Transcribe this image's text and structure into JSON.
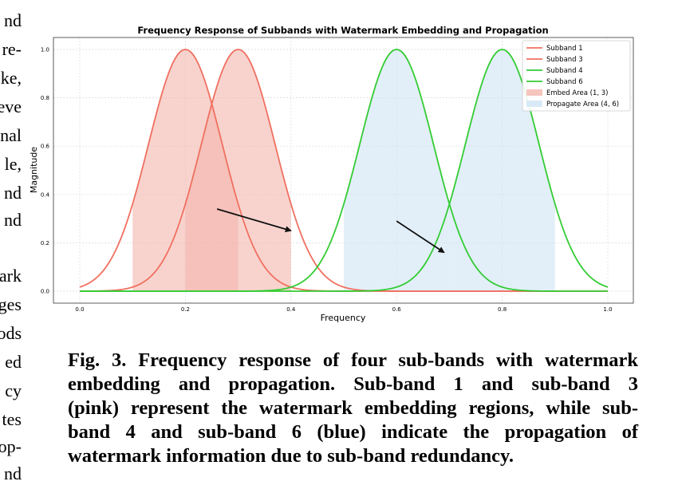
{
  "left_column_fragments": [
    "nd",
    "re-",
    "ke,",
    "eve",
    "nal",
    "le,",
    "nd",
    "nd",
    "ark",
    "ges",
    "ods",
    "ed",
    "cy",
    "tes",
    "op-",
    "nd"
  ],
  "caption_lines": [
    "Fig. 3. Frequency response of four sub-bands with watermark",
    "embedding and propagation. Sub-band 1 and sub-band 3",
    "(pink) represent the watermark embedding regions, while sub-",
    "band 4 and sub-band 6 (blue) indicate the propagation of",
    "watermark information due to sub-band redundancy."
  ],
  "chart_data": {
    "type": "line",
    "title": "Frequency Response of Subbands with Watermark Embedding and Propagation",
    "xlabel": "Frequency",
    "ylabel": "Magnitude",
    "xlim": [
      0,
      1
    ],
    "ylim": [
      0,
      1
    ],
    "xticks": [
      "0.0",
      "0.2",
      "0.4",
      "0.6",
      "0.8",
      "1.0"
    ],
    "yticks": [
      "0.0",
      "0.2",
      "0.4",
      "0.6",
      "0.8",
      "1.0"
    ],
    "grid": true,
    "legend_position": "top-right",
    "series": [
      {
        "name": "Subband 1",
        "center": 0.2,
        "sigma": 0.07,
        "color": "#f07060"
      },
      {
        "name": "Subband 3",
        "center": 0.3,
        "sigma": 0.07,
        "color": "#f07060"
      },
      {
        "name": "Subband 4",
        "center": 0.6,
        "sigma": 0.07,
        "color": "#33cc33"
      },
      {
        "name": "Subband 6",
        "center": 0.8,
        "sigma": 0.07,
        "color": "#33cc33"
      }
    ],
    "areas": [
      {
        "name": "Embed Area (1, 3)",
        "ranges": [
          [
            0.1,
            0.3
          ],
          [
            0.2,
            0.4
          ]
        ],
        "series": [
          0,
          1
        ],
        "color": "#f4b6ae"
      },
      {
        "name": "Propagate Area (4, 6)",
        "ranges": [
          [
            0.5,
            0.7
          ],
          [
            0.7,
            0.9
          ]
        ],
        "series": [
          2,
          3
        ],
        "color": "#cfe5f5"
      }
    ],
    "arrows": [
      {
        "from": [
          0.26,
          0.34
        ],
        "to": [
          0.4,
          0.25
        ]
      },
      {
        "from": [
          0.6,
          0.29
        ],
        "to": [
          0.69,
          0.16
        ]
      }
    ]
  }
}
